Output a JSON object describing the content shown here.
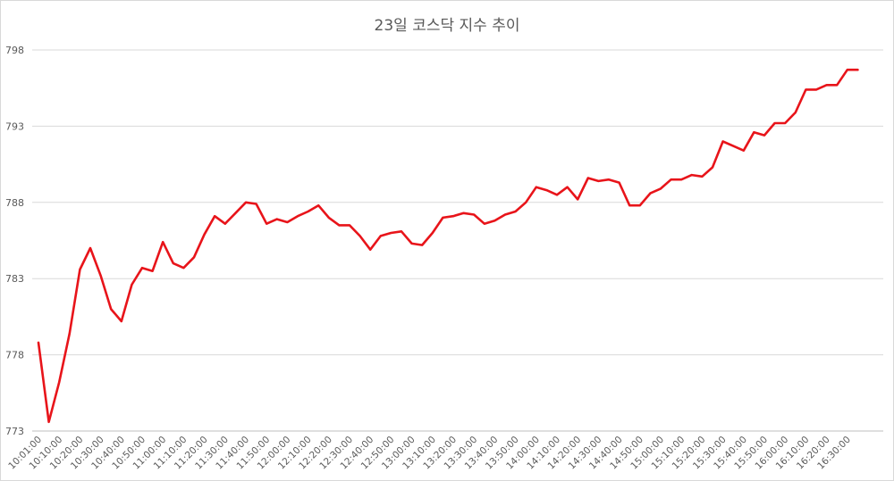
{
  "chart_data": {
    "type": "line",
    "title": "23일 코스닥 지수 추이",
    "xlabel": "",
    "ylabel": "",
    "ylim": [
      773,
      798
    ],
    "yticks": [
      773,
      778,
      783,
      788,
      793,
      798
    ],
    "grid": true,
    "legend": "none",
    "series_color": "#e8141a",
    "x_tick_labels": [
      "10:01:00",
      "10:10:00",
      "10:20:00",
      "10:30:00",
      "10:40:00",
      "10:50:00",
      "11:00:00",
      "11:10:00",
      "11:20:00",
      "11:30:00",
      "11:40:00",
      "11:50:00",
      "12:00:00",
      "12:10:00",
      "12:20:00",
      "12:30:00",
      "12:40:00",
      "12:50:00",
      "13:00:00",
      "13:10:00",
      "13:20:00",
      "13:30:00",
      "13:40:00",
      "13:50:00",
      "14:00:00",
      "14:10:00",
      "14:20:00",
      "14:30:00",
      "14:40:00",
      "14:50:00",
      "15:00:00",
      "15:10:00",
      "15:20:00",
      "15:30:00",
      "15:40:00",
      "15:50:00",
      "16:00:00",
      "16:10:00",
      "16:20:00",
      "16:30:00"
    ],
    "series": [
      {
        "values": [
          778.8,
          773.6,
          776.2,
          779.4,
          783.6,
          785.0,
          783.2,
          781.0,
          780.2,
          782.6,
          783.7,
          783.5,
          785.4,
          784.0,
          783.7,
          784.4,
          785.9,
          787.1,
          786.6,
          787.3,
          788.0,
          787.9,
          786.6,
          786.9,
          786.7,
          787.1,
          787.4,
          787.8,
          787.0,
          786.5,
          786.5,
          785.8,
          784.9,
          785.8,
          786.0,
          786.1,
          785.3,
          785.2,
          786.0,
          787.0,
          787.1,
          787.3,
          787.2,
          786.6,
          786.8,
          787.2,
          787.4,
          788.0,
          789.0,
          788.8,
          788.5,
          789.0,
          788.2,
          789.6,
          789.4,
          789.5,
          789.3,
          787.8,
          787.8,
          788.6,
          788.9,
          789.5,
          789.5,
          789.8,
          789.7,
          790.3,
          792.0,
          791.7,
          791.4,
          792.6,
          792.4,
          793.2,
          793.2,
          793.9,
          795.4,
          795.4,
          795.7,
          795.7,
          796.7,
          796.7
        ]
      }
    ]
  }
}
